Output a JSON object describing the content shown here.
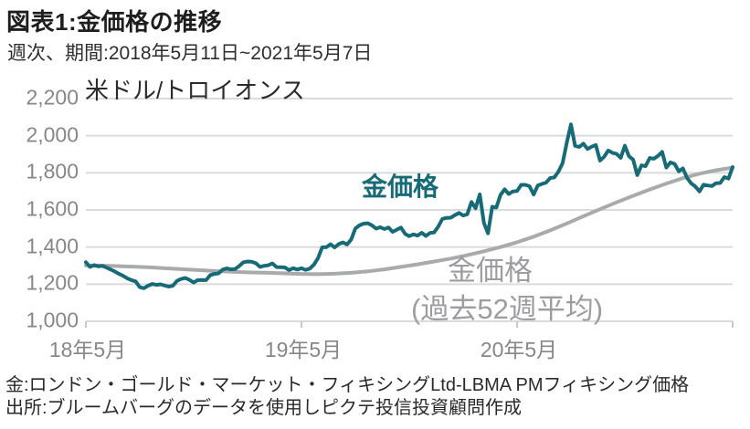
{
  "header": {
    "title": "図表1:金価格の推移",
    "subtitle": "週次、期間:2018年5月11日~2021年5月7日"
  },
  "footer": {
    "source_line1": "金:ロンドン・ゴールド・マーケット・フィキシングLtd-LBMA PMフィキシング価格",
    "source_line2": "出所:ブルームバーグのデータを使用しピクテ投信投資顧問作成"
  },
  "colors": {
    "gold_line": "#176b76",
    "average_line": "#a8aaac",
    "grid": "#dadbdc",
    "tick_mark": "#c9cacb",
    "tick_text": "#85878a",
    "gray_label": "#9b9da0",
    "gold_label": "#176b76"
  },
  "chart_data": {
    "type": "line",
    "title": "金価格の推移",
    "unit_label": "米ドル/トロイオンス",
    "x_description": "週番号(2018年5月11日=0 〜 2021年5月7日=156, 週次)",
    "xlim": [
      0,
      156
    ],
    "ylim": [
      1000,
      2200
    ],
    "grid": "horizontal",
    "legend_position": "inline-annotations",
    "yticks": {
      "values": [
        2200,
        2000,
        1800,
        1600,
        1400,
        1200,
        1000
      ],
      "labels": [
        "2,200",
        "2,000",
        "1,800",
        "1,600",
        "1,400",
        "1,200",
        "1,000"
      ]
    },
    "xticks": [
      {
        "week": 0,
        "label": "18年5月"
      },
      {
        "week": 52,
        "label": "19年5月"
      },
      {
        "week": 104,
        "label": "20年5月"
      },
      {
        "week": 156,
        "label": ""
      }
    ],
    "annotations": {
      "gold": "金価格",
      "avg_line1": "金価格",
      "avg_line2": "(過去52週平均)"
    },
    "series": [
      {
        "name": "金価格",
        "color_key": "gold_line",
        "points": [
          [
            0,
            1318
          ],
          [
            1,
            1293
          ],
          [
            2,
            1303
          ],
          [
            3,
            1296
          ],
          [
            4,
            1298
          ],
          [
            5,
            1289
          ],
          [
            6,
            1279
          ],
          [
            7,
            1268
          ],
          [
            8,
            1255
          ],
          [
            9,
            1245
          ],
          [
            10,
            1231
          ],
          [
            11,
            1222
          ],
          [
            12,
            1215
          ],
          [
            13,
            1184
          ],
          [
            14,
            1178
          ],
          [
            15,
            1192
          ],
          [
            16,
            1201
          ],
          [
            17,
            1196
          ],
          [
            18,
            1199
          ],
          [
            19,
            1193
          ],
          [
            20,
            1187
          ],
          [
            21,
            1192
          ],
          [
            22,
            1218
          ],
          [
            23,
            1228
          ],
          [
            24,
            1233
          ],
          [
            25,
            1223
          ],
          [
            26,
            1209
          ],
          [
            27,
            1222
          ],
          [
            28,
            1223
          ],
          [
            29,
            1222
          ],
          [
            30,
            1249
          ],
          [
            31,
            1255
          ],
          [
            32,
            1258
          ],
          [
            33,
            1279
          ],
          [
            34,
            1285
          ],
          [
            35,
            1280
          ],
          [
            36,
            1282
          ],
          [
            37,
            1298
          ],
          [
            38,
            1318
          ],
          [
            39,
            1322
          ],
          [
            40,
            1321
          ],
          [
            41,
            1313
          ],
          [
            42,
            1293
          ],
          [
            43,
            1299
          ],
          [
            44,
            1302
          ],
          [
            45,
            1312
          ],
          [
            46,
            1292
          ],
          [
            47,
            1291
          ],
          [
            48,
            1290
          ],
          [
            49,
            1276
          ],
          [
            50,
            1286
          ],
          [
            51,
            1279
          ],
          [
            52,
            1286
          ],
          [
            53,
            1277
          ],
          [
            54,
            1284
          ],
          [
            55,
            1305
          ],
          [
            56,
            1341
          ],
          [
            57,
            1399
          ],
          [
            58,
            1399
          ],
          [
            59,
            1415
          ],
          [
            60,
            1398
          ],
          [
            61,
            1416
          ],
          [
            62,
            1425
          ],
          [
            63,
            1414
          ],
          [
            64,
            1441
          ],
          [
            65,
            1500
          ],
          [
            66,
            1517
          ],
          [
            67,
            1526
          ],
          [
            68,
            1528
          ],
          [
            69,
            1517
          ],
          [
            70,
            1499
          ],
          [
            71,
            1507
          ],
          [
            72,
            1497
          ],
          [
            73,
            1505
          ],
          [
            74,
            1482
          ],
          [
            75,
            1494
          ],
          [
            76,
            1505
          ],
          [
            77,
            1471
          ],
          [
            78,
            1459
          ],
          [
            79,
            1468
          ],
          [
            80,
            1462
          ],
          [
            81,
            1477
          ],
          [
            82,
            1460
          ],
          [
            83,
            1476
          ],
          [
            84,
            1479
          ],
          [
            85,
            1511
          ],
          [
            86,
            1552
          ],
          [
            87,
            1557
          ],
          [
            88,
            1558
          ],
          [
            89,
            1572
          ],
          [
            90,
            1584
          ],
          [
            91,
            1570
          ],
          [
            92,
            1577
          ],
          [
            93,
            1643
          ],
          [
            94,
            1609
          ],
          [
            95,
            1684
          ],
          [
            96,
            1530
          ],
          [
            97,
            1474
          ],
          [
            98,
            1617
          ],
          [
            99,
            1613
          ],
          [
            100,
            1680
          ],
          [
            101,
            1711
          ],
          [
            102,
            1686
          ],
          [
            103,
            1700
          ],
          [
            104,
            1702
          ],
          [
            105,
            1735
          ],
          [
            106,
            1735
          ],
          [
            107,
            1728
          ],
          [
            108,
            1683
          ],
          [
            109,
            1732
          ],
          [
            110,
            1740
          ],
          [
            111,
            1747
          ],
          [
            112,
            1772
          ],
          [
            113,
            1775
          ],
          [
            114,
            1807
          ],
          [
            115,
            1853
          ],
          [
            116,
            1964
          ],
          [
            117,
            2061
          ],
          [
            118,
            1945
          ],
          [
            119,
            1940
          ],
          [
            120,
            1957
          ],
          [
            121,
            1928
          ],
          [
            122,
            1941
          ],
          [
            123,
            1950
          ],
          [
            124,
            1866
          ],
          [
            125,
            1886
          ],
          [
            126,
            1920
          ],
          [
            127,
            1908
          ],
          [
            128,
            1902
          ],
          [
            129,
            1881
          ],
          [
            130,
            1946
          ],
          [
            131,
            1889
          ],
          [
            132,
            1871
          ],
          [
            133,
            1788
          ],
          [
            134,
            1840
          ],
          [
            135,
            1836
          ],
          [
            136,
            1880
          ],
          [
            137,
            1876
          ],
          [
            138,
            1891
          ],
          [
            139,
            1913
          ],
          [
            140,
            1828
          ],
          [
            141,
            1856
          ],
          [
            142,
            1848
          ],
          [
            143,
            1808
          ],
          [
            144,
            1824
          ],
          [
            145,
            1773
          ],
          [
            146,
            1743
          ],
          [
            147,
            1726
          ],
          [
            148,
            1700
          ],
          [
            149,
            1736
          ],
          [
            150,
            1732
          ],
          [
            151,
            1729
          ],
          [
            152,
            1744
          ],
          [
            153,
            1745
          ],
          [
            154,
            1777
          ],
          [
            155,
            1769
          ],
          [
            156,
            1831
          ]
        ]
      },
      {
        "name": "金価格(過去52週平均)",
        "color_key": "average_line",
        "points": [
          [
            0,
            1301
          ],
          [
            4,
            1300
          ],
          [
            8,
            1297
          ],
          [
            12,
            1294
          ],
          [
            16,
            1290
          ],
          [
            20,
            1285
          ],
          [
            24,
            1280
          ],
          [
            28,
            1275
          ],
          [
            32,
            1270
          ],
          [
            36,
            1266
          ],
          [
            40,
            1263
          ],
          [
            44,
            1261
          ],
          [
            48,
            1258
          ],
          [
            52,
            1255
          ],
          [
            56,
            1254
          ],
          [
            60,
            1256
          ],
          [
            64,
            1261
          ],
          [
            68,
            1269
          ],
          [
            72,
            1280
          ],
          [
            76,
            1293
          ],
          [
            80,
            1307
          ],
          [
            84,
            1322
          ],
          [
            88,
            1338
          ],
          [
            92,
            1356
          ],
          [
            96,
            1377
          ],
          [
            100,
            1400
          ],
          [
            104,
            1426
          ],
          [
            108,
            1456
          ],
          [
            112,
            1490
          ],
          [
            116,
            1527
          ],
          [
            120,
            1566
          ],
          [
            124,
            1604
          ],
          [
            128,
            1641
          ],
          [
            132,
            1676
          ],
          [
            136,
            1710
          ],
          [
            140,
            1742
          ],
          [
            144,
            1771
          ],
          [
            148,
            1795
          ],
          [
            152,
            1814
          ],
          [
            156,
            1828
          ]
        ]
      }
    ]
  }
}
